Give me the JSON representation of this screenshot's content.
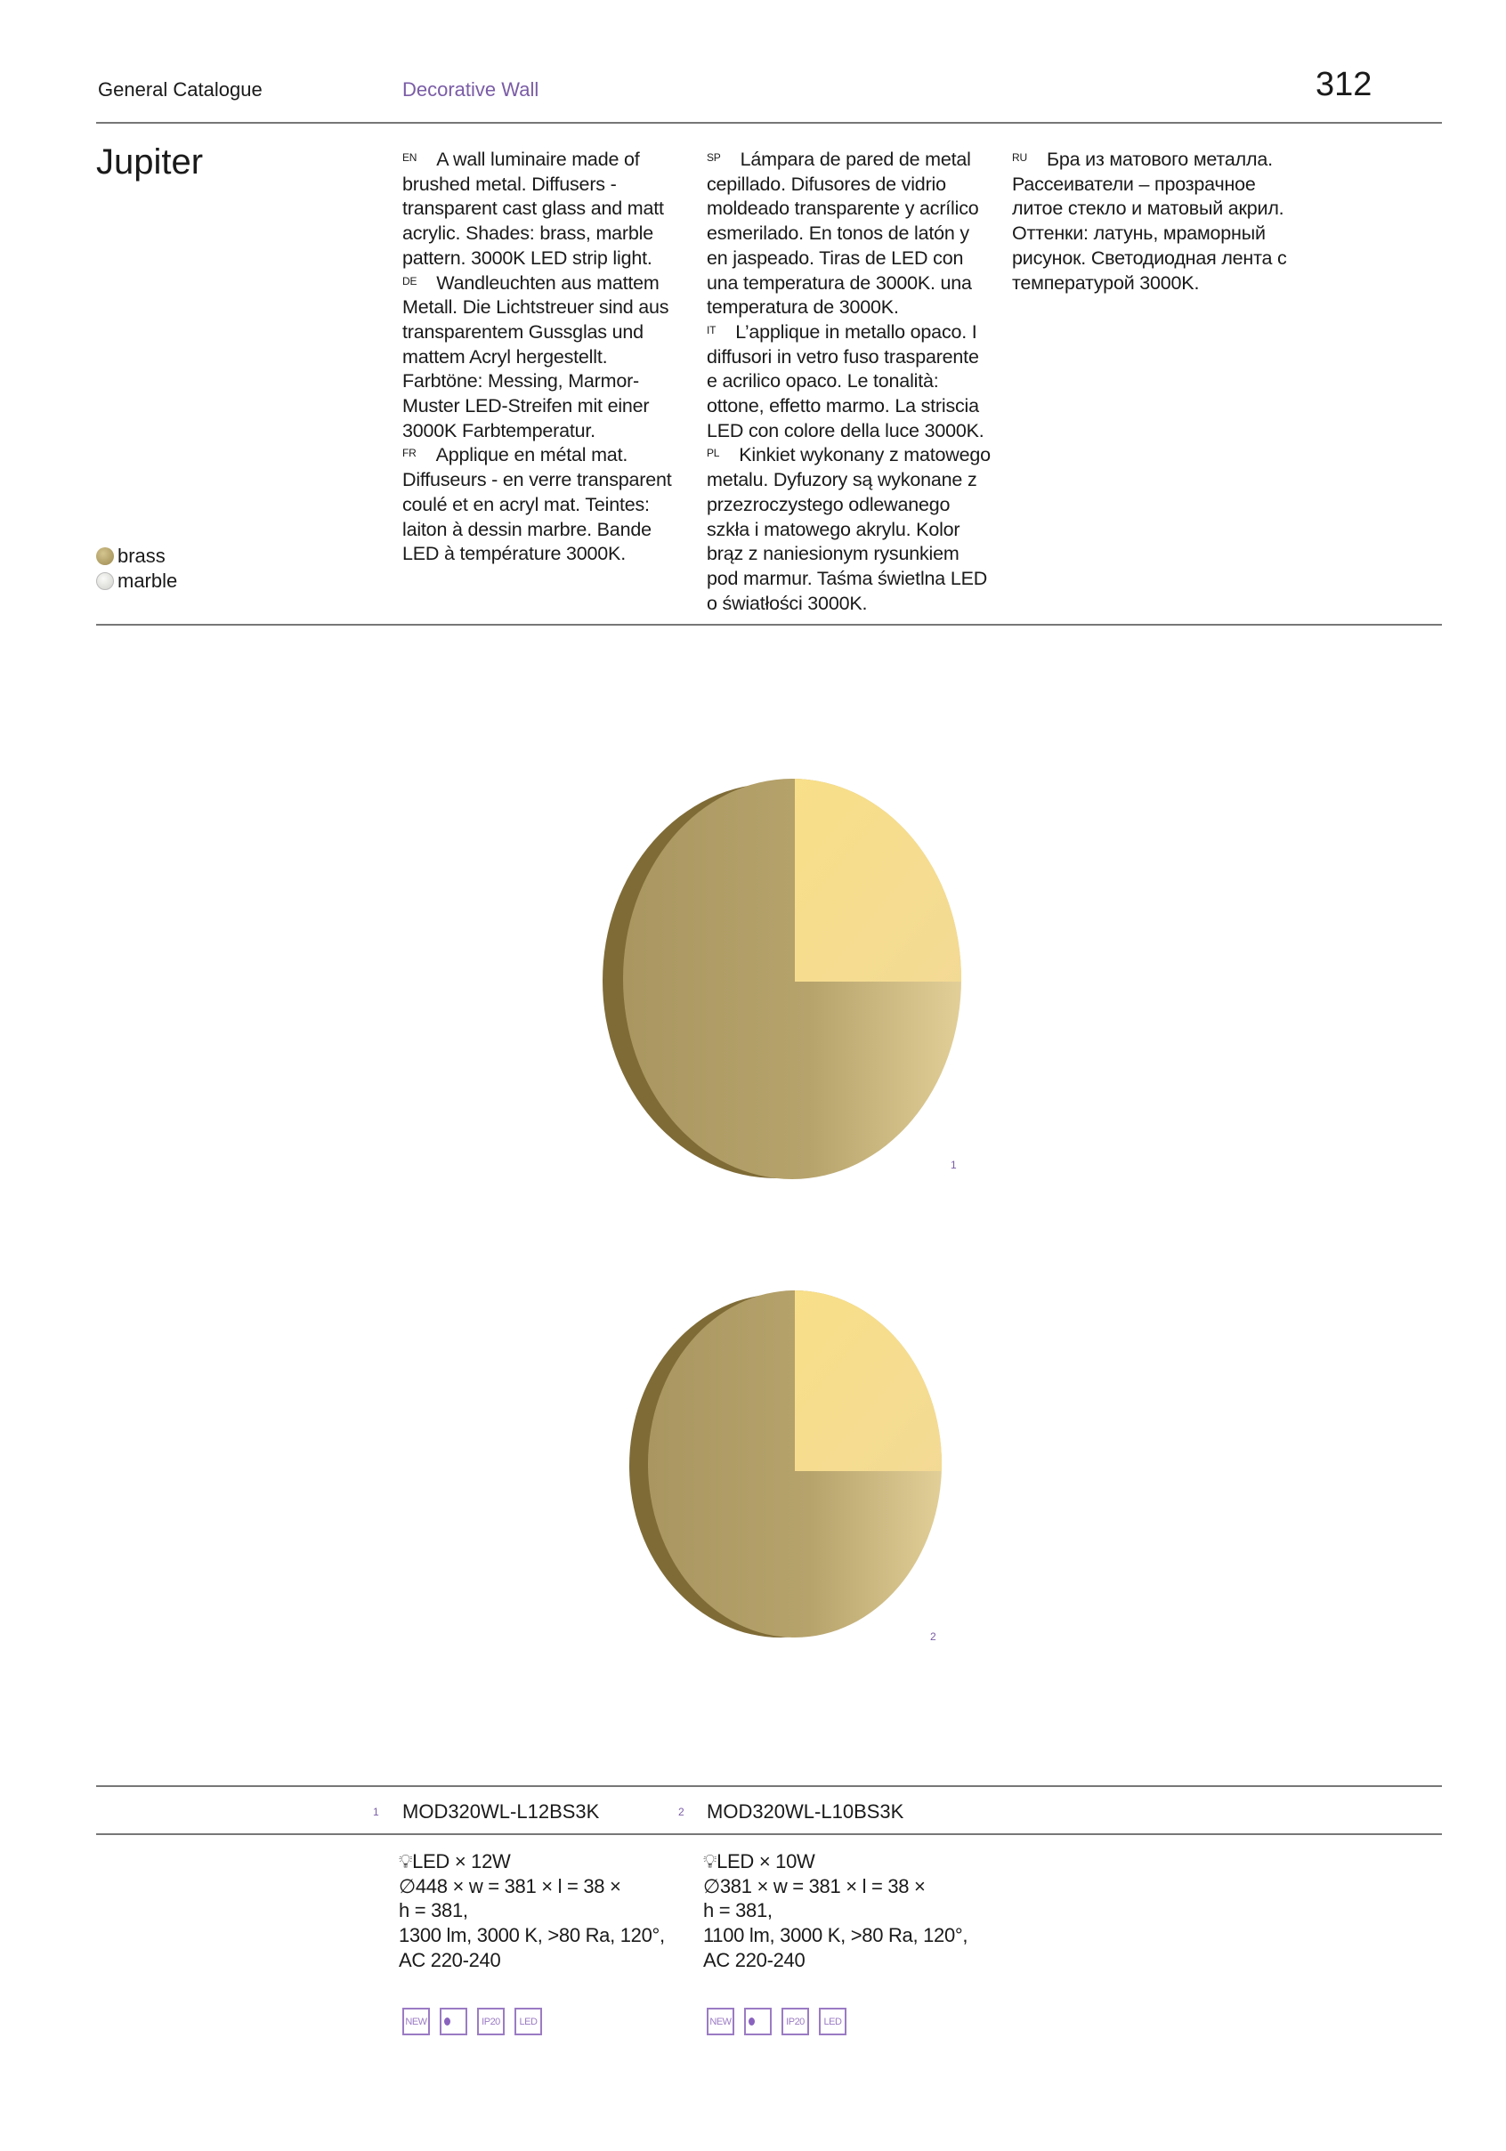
{
  "header": {
    "catalogue": "General Catalogue",
    "section": "Decorative Wall",
    "page_number": "312"
  },
  "product": {
    "title": "Jupiter"
  },
  "descriptions": [
    {
      "lang": "EN",
      "text": "A wall luminaire made of brushed metal. Diffusers - transparent cast glass and matt acrylic. Shades: brass, marble pattern. 3000K LED strip light."
    },
    {
      "lang": "DE",
      "text": "Wandleuchten aus mattem Metall. Die Lichtstreuer sind aus transparentem Gussglas und mattem Acryl hergestellt. Farbtöne: Messing, Marmor-Muster LED-Streifen mit einer 3000K Farbtemperatur."
    },
    {
      "lang": "FR",
      "text": "Applique en métal mat. Diffuseurs - en verre transparent coulé et en acryl mat. Teintes: laiton à dessin marbre. Bande LED à température 3000K."
    },
    {
      "lang": "SP",
      "text": "Lámpara de pared de metal cepillado. Difusores de vidrio moldeado transparente y acrílico esmerilado. En tonos de latón y en jaspeado. Tiras de LED con una temperatura de 3000K. una temperatura de 3000K."
    },
    {
      "lang": "IT",
      "text": "L’applique in metallo opaco. I diffusori in vetro fuso trasparente e acrilico opaco. Le tonalità: ottone, effetto marmo. La striscia LED con colore della luce 3000K."
    },
    {
      "lang": "PL",
      "text": "Kinkiet wykonany z matowego metalu. Dyfuzory są wykonane z przezroczystego odlewanego szkła i matowego akrylu. Kolor brąz z naniesionym rysunkiem pod marmur. Taśma świetlna LED o światłości 3000K."
    },
    {
      "lang": "RU",
      "text": "Бра из матового металла. Рассеиватели – прозрачное литое стекло и матовый акрил. Оттенки: латунь, мраморный рисунок. Светодиодная лента с температурой 3000K."
    }
  ],
  "finishes": [
    {
      "label": "brass",
      "color": "#b5a36a"
    },
    {
      "label": "marble",
      "color": "#e8e8e4"
    }
  ],
  "images": [
    {
      "label": "1"
    },
    {
      "label": "2"
    }
  ],
  "models": [
    {
      "index": "1",
      "code": "MOD320WL-L12BS3K",
      "spec": [
        "LED × 12W",
        "∅448 × w = 381 × l = 38 ×",
        "h = 381,",
        "1300 lm, 3000 K, >80 Ra, 120°,",
        "AC 220-240"
      ],
      "badges": [
        "NEW",
        "",
        "IP20",
        "LED"
      ]
    },
    {
      "index": "2",
      "code": "MOD320WL-L10BS3K",
      "spec": [
        "LED × 10W",
        "∅381 × w = 381 × l = 38 ×",
        "h = 381,",
        "1100 lm, 3000 K, >80 Ra, 120°,",
        "AC 220-240"
      ],
      "badges": [
        "NEW",
        "",
        "IP20",
        "LED"
      ]
    }
  ],
  "colors": {
    "accent": "#7a5ca6",
    "brass": "#b09a62",
    "brass_light": "#f6dd8a"
  }
}
